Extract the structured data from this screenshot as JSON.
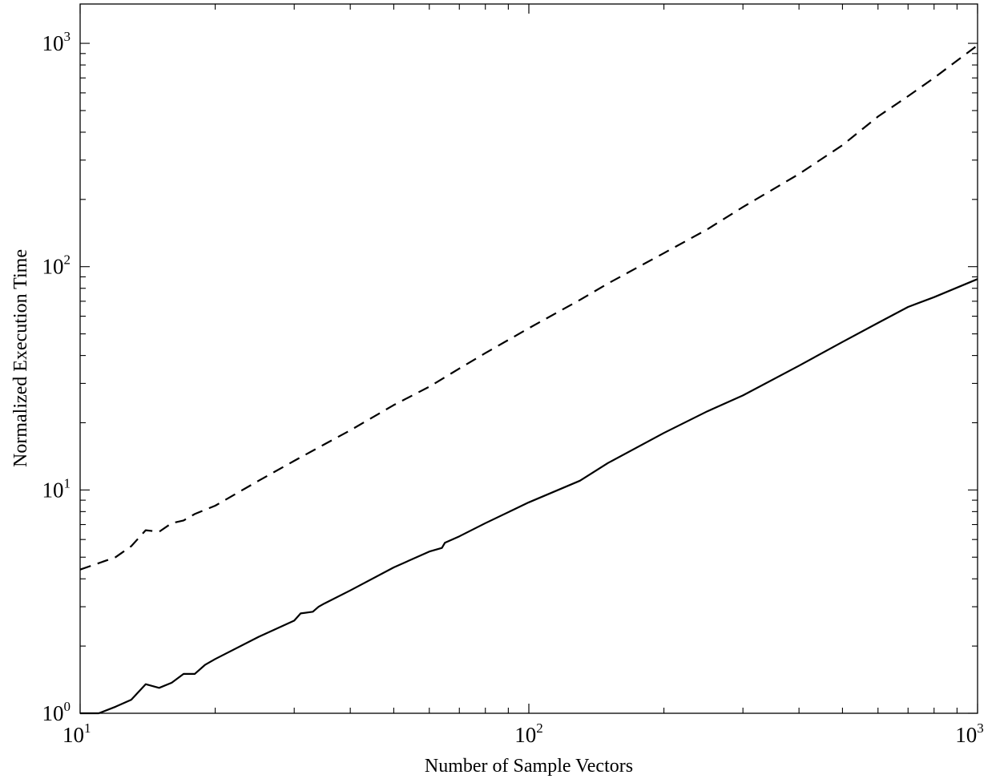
{
  "chart_data": {
    "type": "line",
    "xlabel": "Number of Sample Vectors",
    "ylabel": "Normalized Execution Time",
    "x_scale": "log",
    "y_scale": "log",
    "xlim": [
      10,
      1000
    ],
    "ylim": [
      1,
      1500
    ],
    "grid": false,
    "x_ticks": [
      {
        "value": 10,
        "base": "10",
        "exp": "1"
      },
      {
        "value": 100,
        "base": "10",
        "exp": "2"
      },
      {
        "value": 1000,
        "base": "10",
        "exp": "3"
      }
    ],
    "y_ticks": [
      {
        "value": 1,
        "base": "10",
        "exp": "0"
      },
      {
        "value": 10,
        "base": "10",
        "exp": "1"
      },
      {
        "value": 100,
        "base": "10",
        "exp": "2"
      },
      {
        "value": 1000,
        "base": "10",
        "exp": "3"
      }
    ],
    "series": [
      {
        "style": "dashed",
        "color": "#000000",
        "x": [
          10,
          11,
          12,
          13,
          14,
          15,
          16,
          17,
          18,
          20,
          25,
          30,
          35,
          40,
          50,
          60,
          70,
          80,
          100,
          130,
          150,
          200,
          250,
          300,
          400,
          500,
          600,
          700,
          800,
          1000
        ],
        "y": [
          4.4,
          4.7,
          5.0,
          5.6,
          6.6,
          6.5,
          7.1,
          7.3,
          7.8,
          8.5,
          11.0,
          13.5,
          16.0,
          18.5,
          24.0,
          29.0,
          35.0,
          41.0,
          53.0,
          71.0,
          84.0,
          115.0,
          147.0,
          185.0,
          260.0,
          350.0,
          470.0,
          580.0,
          700.0,
          980.0
        ]
      },
      {
        "style": "solid",
        "color": "#000000",
        "x": [
          10,
          11,
          12,
          13,
          14,
          15,
          16,
          17,
          18,
          19,
          20,
          25,
          30,
          31,
          33,
          34,
          35,
          40,
          50,
          60,
          64,
          65,
          70,
          80,
          100,
          130,
          150,
          200,
          250,
          300,
          400,
          500,
          600,
          700,
          800,
          1000
        ],
        "y": [
          1.0,
          1.0,
          1.07,
          1.15,
          1.35,
          1.3,
          1.37,
          1.5,
          1.5,
          1.65,
          1.75,
          2.2,
          2.6,
          2.8,
          2.85,
          3.0,
          3.1,
          3.55,
          4.5,
          5.3,
          5.5,
          5.8,
          6.2,
          7.1,
          8.8,
          11.0,
          13.2,
          18.0,
          22.5,
          26.5,
          36.0,
          46.0,
          56.0,
          66.0,
          73.0,
          88.0
        ]
      }
    ]
  }
}
